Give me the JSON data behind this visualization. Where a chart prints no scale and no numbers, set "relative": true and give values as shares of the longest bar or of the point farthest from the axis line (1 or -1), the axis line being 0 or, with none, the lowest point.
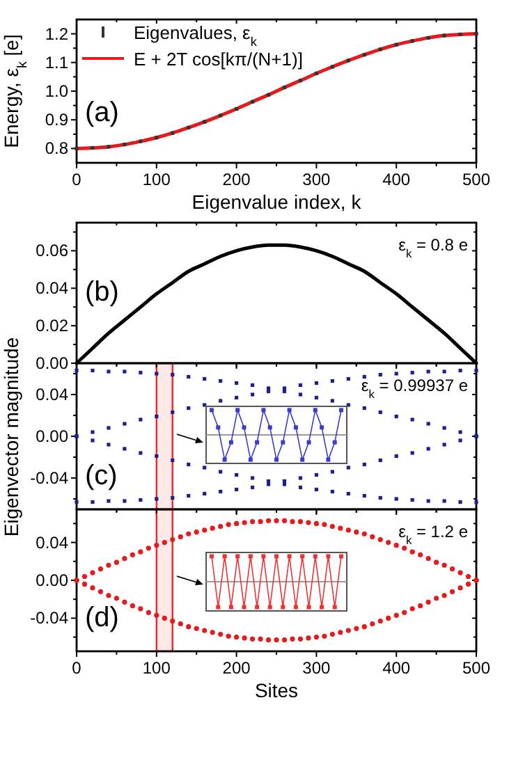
{
  "chart_data": [
    {
      "type": "line",
      "xlabel": "Eigenvalue index, k",
      "ylabel": "Energy, ε$_{k}$ [e]",
      "annotations": [
        "(a)"
      ],
      "legend": "top left",
      "x": [
        0,
        20,
        40,
        60,
        80,
        100,
        120,
        140,
        160,
        180,
        200,
        220,
        240,
        260,
        280,
        300,
        320,
        340,
        360,
        380,
        400,
        420,
        440,
        460,
        480,
        500
      ],
      "xlim": [
        0,
        500
      ],
      "xticks": [
        0,
        {
          "value": 50,
          "label": null
        },
        100,
        {
          "value": 150,
          "label": null
        },
        200,
        {
          "value": 250,
          "label": null
        },
        300,
        {
          "value": 350,
          "label": null
        },
        400,
        {
          "value": 450,
          "label": null
        },
        500
      ],
      "ylim": [
        0.75,
        1.25
      ],
      "yticks": [
        0.8,
        {
          "value": 0.85,
          "label": null
        },
        0.9,
        {
          "value": 0.95,
          "label": null
        },
        {
          "value": 1,
          "label": "1.0"
        },
        {
          "value": 1.05,
          "label": null
        },
        1.1,
        {
          "value": 1.15,
          "label": null
        },
        1.2
      ],
      "series": [
        {
          "type": "line",
          "name": "E + 2T cos[kπ/(N+1)]",
          "color": "#e41a1c",
          "values": [
            0.8,
            0.802,
            0.806,
            0.814,
            0.825,
            0.838,
            0.854,
            0.873,
            0.893,
            0.915,
            0.938,
            0.963,
            0.987,
            1.013,
            1.037,
            1.062,
            1.085,
            1.107,
            1.127,
            1.146,
            1.162,
            1.175,
            1.186,
            1.194,
            1.198,
            1.2
          ]
        },
        {
          "type": "scatter",
          "name": "Eigenvalues, ε$_{k}$",
          "color": "#333333",
          "marker": "square",
          "values": [
            0.8,
            0.802,
            0.806,
            0.814,
            0.825,
            0.838,
            0.854,
            0.873,
            0.893,
            0.915,
            0.938,
            0.963,
            0.987,
            1.013,
            1.037,
            1.062,
            1.085,
            1.107,
            1.127,
            1.146,
            1.162,
            1.175,
            1.186,
            1.194,
            1.198,
            1.2
          ]
        }
      ]
    },
    {
      "type": "line",
      "annotations": [
        "(b)",
        "ε$_{k}$ = 0.8 e"
      ],
      "tick_labels": "y",
      "x": [
        0,
        20,
        40,
        60,
        80,
        100,
        120,
        140,
        160,
        180,
        200,
        220,
        240,
        260,
        280,
        300,
        320,
        340,
        360,
        380,
        400,
        420,
        440,
        460,
        480,
        500
      ],
      "xlim": [
        0,
        500
      ],
      "xticks": [
        0,
        {
          "value": 50,
          "label": null
        },
        100,
        {
          "value": 150,
          "label": null
        },
        200,
        {
          "value": 250,
          "label": null
        },
        300,
        {
          "value": 350,
          "label": null
        },
        400,
        {
          "value": 450,
          "label": null
        },
        500
      ],
      "ylim": [
        0,
        0.075
      ],
      "yticks": [
        {
          "value": 0,
          "label": "0.00"
        },
        {
          "value": 0.01,
          "label": null
        },
        0.02,
        {
          "value": 0.03,
          "label": null
        },
        0.04,
        {
          "value": 0.05,
          "label": null
        },
        0.06,
        {
          "value": 0.07,
          "label": null
        }
      ],
      "series": [
        {
          "color": "#000000",
          "values": [
            0,
            0.008,
            0.016,
            0.023,
            0.03,
            0.037,
            0.043,
            0.049,
            0.053,
            0.057,
            0.06,
            0.062,
            0.063,
            0.063,
            0.062,
            0.06,
            0.057,
            0.053,
            0.049,
            0.043,
            0.037,
            0.03,
            0.023,
            0.016,
            0.008,
            0
          ]
        }
      ]
    },
    {
      "type": "scatter",
      "marker": "square",
      "ylabel": "Eigenvector magnitude",
      "annotations": [
        "(c)",
        "ε$_{k}$ = 0.99937 e"
      ],
      "tick_labels": "y",
      "bands": [
        {
          "axis": "x",
          "from": 100,
          "to": 120,
          "color": "#ff2020"
        }
      ],
      "x": [
        0,
        20,
        40,
        60,
        80,
        100,
        120,
        140,
        160,
        180,
        200,
        220,
        240,
        260,
        280,
        300,
        320,
        340,
        360,
        380,
        400,
        420,
        440,
        460,
        480,
        500
      ],
      "xlim": [
        0,
        500
      ],
      "xticks": [
        0,
        {
          "value": 50,
          "label": null
        },
        100,
        {
          "value": 150,
          "label": null
        },
        200,
        {
          "value": 250,
          "label": null
        },
        300,
        {
          "value": 350,
          "label": null
        },
        400,
        {
          "value": 450,
          "label": null
        },
        500
      ],
      "ylim": [
        -0.07,
        0.07
      ],
      "yticks": [
        {
          "value": -0.06,
          "label": null
        },
        -0.04,
        {
          "value": -0.02,
          "label": null
        },
        {
          "value": 0,
          "label": "0.00"
        },
        {
          "value": 0.02,
          "label": null
        },
        0.04,
        {
          "value": 0.06,
          "label": null
        }
      ],
      "series": [
        {
          "color": "#1f1f8f",
          "values": [
            0,
            0.004,
            0.008,
            0.012,
            0.016,
            0.019,
            0.023,
            0.027,
            0.03,
            0.034,
            0.037,
            0.04,
            0.043,
            0.046,
            0.049,
            0.051,
            0.053,
            0.055,
            0.057,
            0.059,
            0.06,
            0.061,
            0.062,
            0.062,
            0.063,
            0.063
          ]
        },
        {
          "color": "#1f1f8f",
          "values": [
            0.063,
            0.063,
            0.062,
            0.062,
            0.061,
            0.06,
            0.059,
            0.057,
            0.055,
            0.053,
            0.051,
            0.049,
            0.046,
            0.043,
            0.04,
            0.037,
            0.034,
            0.03,
            0.027,
            0.023,
            0.019,
            0.016,
            0.012,
            0.008,
            0.004,
            0
          ]
        },
        {
          "color": "#1f1f8f",
          "values": [
            0,
            -0.004,
            -0.008,
            -0.012,
            -0.016,
            -0.019,
            -0.023,
            -0.027,
            -0.03,
            -0.034,
            -0.037,
            -0.04,
            -0.043,
            -0.046,
            -0.049,
            -0.051,
            -0.053,
            -0.055,
            -0.057,
            -0.059,
            -0.06,
            -0.061,
            -0.062,
            -0.062,
            -0.063,
            -0.063
          ]
        },
        {
          "color": "#1f1f8f",
          "values": [
            -0.063,
            -0.063,
            -0.062,
            -0.062,
            -0.061,
            -0.06,
            -0.059,
            -0.057,
            -0.055,
            -0.053,
            -0.051,
            -0.049,
            -0.046,
            -0.043,
            -0.04,
            -0.037,
            -0.034,
            -0.03,
            -0.027,
            -0.023,
            -0.019,
            -0.016,
            -0.012,
            -0.008,
            -0.004,
            0
          ]
        }
      ]
    },
    {
      "type": "line",
      "relative": true,
      "marker": "square",
      "tick_labels": false,
      "categories": [
        null,
        null,
        null,
        null,
        null,
        null,
        null,
        null,
        null,
        null,
        null,
        null,
        null,
        null,
        null,
        null,
        null,
        null,
        null,
        null,
        null
      ],
      "series": [
        {
          "color": "#3b3bcf",
          "values": [
            1,
            0.3,
            -1,
            -0.3,
            1,
            0.3,
            -1,
            -0.3,
            1,
            0.3,
            -1,
            -0.3,
            1,
            0.3,
            -1,
            -0.3,
            1,
            0.3,
            -1,
            -0.3,
            1
          ]
        }
      ]
    },
    {
      "type": "scatter",
      "marker": "circle",
      "xlabel": "Sites",
      "annotations": [
        "(d)",
        "ε$_{k}$ = 1.2 e"
      ],
      "bands": [
        {
          "axis": "x",
          "from": 100,
          "to": 120,
          "color": "#ff2020"
        }
      ],
      "x": [
        0,
        10,
        20,
        30,
        40,
        50,
        60,
        70,
        80,
        90,
        100,
        110,
        120,
        130,
        140,
        150,
        160,
        170,
        180,
        190,
        200,
        210,
        220,
        230,
        240,
        250,
        260,
        270,
        280,
        290,
        300,
        310,
        320,
        330,
        340,
        350,
        360,
        370,
        380,
        390,
        400,
        410,
        420,
        430,
        440,
        450,
        460,
        470,
        480,
        490,
        500
      ],
      "xlim": [
        0,
        500
      ],
      "xticks": [
        0,
        {
          "value": 50,
          "label": null
        },
        100,
        {
          "value": 150,
          "label": null
        },
        200,
        {
          "value": 250,
          "label": null
        },
        300,
        {
          "value": 350,
          "label": null
        },
        400,
        {
          "value": 450,
          "label": null
        },
        500
      ],
      "ylim": [
        -0.075,
        0.075
      ],
      "yticks": [
        {
          "value": -0.06,
          "label": null
        },
        -0.04,
        {
          "value": -0.02,
          "label": null
        },
        {
          "value": 0,
          "label": "0.00"
        },
        {
          "value": 0.02,
          "label": null
        },
        0.04,
        {
          "value": 0.06,
          "label": null
        }
      ],
      "series": [
        {
          "color": "#e41a1c",
          "values": [
            0,
            0.004,
            0.008,
            0.012,
            0.016,
            0.019,
            0.023,
            0.027,
            0.03,
            0.034,
            0.037,
            0.04,
            0.043,
            0.046,
            0.049,
            0.051,
            0.053,
            0.055,
            0.057,
            0.059,
            0.06,
            0.061,
            0.062,
            0.062,
            0.063,
            0.063,
            0.063,
            0.062,
            0.062,
            0.061,
            0.06,
            0.059,
            0.057,
            0.055,
            0.053,
            0.051,
            0.049,
            0.046,
            0.043,
            0.04,
            0.037,
            0.034,
            0.03,
            0.027,
            0.023,
            0.019,
            0.016,
            0.012,
            0.008,
            0.004,
            0
          ]
        },
        {
          "color": "#e41a1c",
          "values": [
            0,
            -0.004,
            -0.008,
            -0.012,
            -0.016,
            -0.019,
            -0.023,
            -0.027,
            -0.03,
            -0.034,
            -0.037,
            -0.04,
            -0.043,
            -0.046,
            -0.049,
            -0.051,
            -0.053,
            -0.055,
            -0.057,
            -0.059,
            -0.06,
            -0.061,
            -0.062,
            -0.062,
            -0.063,
            -0.063,
            -0.063,
            -0.062,
            -0.062,
            -0.061,
            -0.06,
            -0.059,
            -0.057,
            -0.055,
            -0.053,
            -0.051,
            -0.049,
            -0.046,
            -0.043,
            -0.04,
            -0.037,
            -0.034,
            -0.03,
            -0.027,
            -0.023,
            -0.019,
            -0.016,
            -0.012,
            -0.008,
            -0.004,
            0
          ]
        }
      ]
    },
    {
      "type": "line",
      "relative": true,
      "marker": "square",
      "tick_labels": false,
      "categories": [
        null,
        null,
        null,
        null,
        null,
        null,
        null,
        null,
        null,
        null,
        null,
        null,
        null,
        null,
        null,
        null,
        null,
        null,
        null,
        null,
        null
      ],
      "series": [
        {
          "color": "#ee3030",
          "values": [
            1,
            -1,
            1,
            -1,
            1,
            -1,
            1,
            -1,
            1,
            -1,
            1,
            -1,
            1,
            -1,
            1,
            -1,
            1,
            -1,
            1,
            -1,
            1
          ]
        }
      ]
    }
  ]
}
